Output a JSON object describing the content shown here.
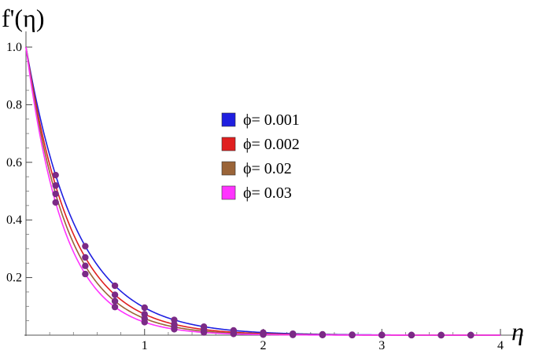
{
  "chart_data": {
    "type": "line",
    "title": "",
    "xlabel": "η",
    "ylabel": "f'(η)",
    "xlim": [
      0,
      4
    ],
    "ylim": [
      0,
      1.0
    ],
    "x_ticks": [
      1,
      2,
      3,
      4
    ],
    "x_tick_labels": [
      "1",
      "2",
      "3",
      "4"
    ],
    "y_ticks": [
      0.2,
      0.4,
      0.6,
      0.8,
      1.0
    ],
    "y_tick_labels": [
      "0.2",
      "0.4",
      "0.6",
      "0.8",
      "1.0"
    ],
    "grid": false,
    "legend_position": "center",
    "marker_color": "#7b2a86",
    "marker_x": [
      0.25,
      0.5,
      0.75,
      1.0,
      1.25,
      1.5,
      1.75,
      2.0,
      2.25,
      2.5,
      2.75,
      3.0,
      3.25,
      3.5,
      3.75
    ],
    "series": [
      {
        "name": "ϕ= 0.001",
        "color": "#1f1fe0",
        "decay": 2.35
      },
      {
        "name": "ϕ= 0.002",
        "color": "#e01f1f",
        "decay": 2.62
      },
      {
        "name": "ϕ= 0.02",
        "color": "#9a6438",
        "decay": 2.85
      },
      {
        "name": "ϕ= 0.03",
        "color": "#ff33ff",
        "decay": 3.1
      }
    ]
  }
}
